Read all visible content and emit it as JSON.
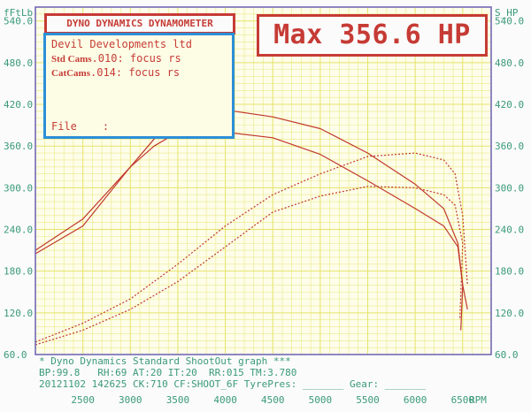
{
  "header": {
    "title": "DYNO DYNAMICS DYNAMOMETER",
    "max_label": "Max 356.6 HP",
    "left_axis_unit": "fFtLb",
    "right_axis_unit": "S_HP"
  },
  "info": {
    "company": "Devil Developments ltd",
    "run1_tag": "Std Cams",
    "run1_text": ".010: focus rs",
    "run2_tag": "CatCams",
    "run2_text": ".014: focus rs",
    "file_label": "File",
    "file_value": ":"
  },
  "footer": {
    "line1": "* Dyno Dynamics Standard ShootOut graph ***",
    "line2": "BP:99.8   RH:69 AT:20 IT:20  RR:015 TM:3.780",
    "line3": "20121102 142625 CK:710 CF:SHOOT_6F TyrePres: _______ Gear: _______"
  },
  "colors": {
    "curve": "#c0392b",
    "grid": "#e6e36a",
    "axis_text": "#3a9a7a",
    "info_border": "#2c8fd8",
    "info_bg": "#fdfde6",
    "red_box": "#c63b35",
    "border": "#6a5fb3"
  },
  "chart_data": {
    "type": "line",
    "xlabel": "RPM",
    "ylabel_left": "fFtLb",
    "ylabel_right": "S_HP",
    "xlim": [
      2000,
      6800
    ],
    "ylim": [
      60,
      560
    ],
    "y_ticks": [
      60,
      120,
      180,
      240,
      300,
      360,
      420,
      480,
      540
    ],
    "y_tick_labels": [
      "60.0",
      "120.0",
      "180.0",
      "240.0",
      "300.0",
      "360.0",
      "420.0",
      "480.0",
      "540.0"
    ],
    "x_ticks": [
      2500,
      3000,
      3500,
      4000,
      4500,
      5000,
      5500,
      6000,
      6500
    ],
    "x_tick_labels": [
      "2500",
      "3000",
      "3500",
      "4000",
      "4500",
      "5000",
      "5500",
      "6000",
      "6500"
    ],
    "grid": true,
    "series": [
      {
        "style": "solid",
        "points": [
          [
            2000,
            205
          ],
          [
            2500,
            245
          ],
          [
            3000,
            330
          ],
          [
            3250,
            370
          ],
          [
            3500,
            400
          ],
          [
            3700,
            415
          ],
          [
            4000,
            412
          ],
          [
            4500,
            402
          ],
          [
            5000,
            385
          ],
          [
            5500,
            350
          ],
          [
            6000,
            305
          ],
          [
            6300,
            270
          ],
          [
            6450,
            220
          ],
          [
            6500,
            160
          ],
          [
            6550,
            125
          ]
        ]
      },
      {
        "style": "solid",
        "points": [
          [
            2000,
            210
          ],
          [
            2500,
            255
          ],
          [
            3000,
            330
          ],
          [
            3250,
            360
          ],
          [
            3500,
            380
          ],
          [
            4000,
            380
          ],
          [
            4500,
            372
          ],
          [
            5000,
            348
          ],
          [
            5500,
            310
          ],
          [
            6000,
            270
          ],
          [
            6300,
            245
          ],
          [
            6450,
            215
          ],
          [
            6500,
            160
          ],
          [
            6480,
            95
          ]
        ]
      },
      {
        "style": "dotted",
        "points": [
          [
            2000,
            78
          ],
          [
            2500,
            105
          ],
          [
            3000,
            140
          ],
          [
            3500,
            190
          ],
          [
            4000,
            245
          ],
          [
            4500,
            290
          ],
          [
            5000,
            320
          ],
          [
            5500,
            345
          ],
          [
            6000,
            350
          ],
          [
            6300,
            340
          ],
          [
            6420,
            320
          ],
          [
            6500,
            260
          ],
          [
            6550,
            160
          ]
        ]
      },
      {
        "style": "dotted",
        "points": [
          [
            2000,
            74
          ],
          [
            2500,
            95
          ],
          [
            3000,
            125
          ],
          [
            3500,
            165
          ],
          [
            4000,
            215
          ],
          [
            4500,
            265
          ],
          [
            5000,
            288
          ],
          [
            5500,
            302
          ],
          [
            6000,
            300
          ],
          [
            6300,
            290
          ],
          [
            6420,
            275
          ],
          [
            6500,
            220
          ],
          [
            6470,
            110
          ]
        ]
      }
    ]
  }
}
